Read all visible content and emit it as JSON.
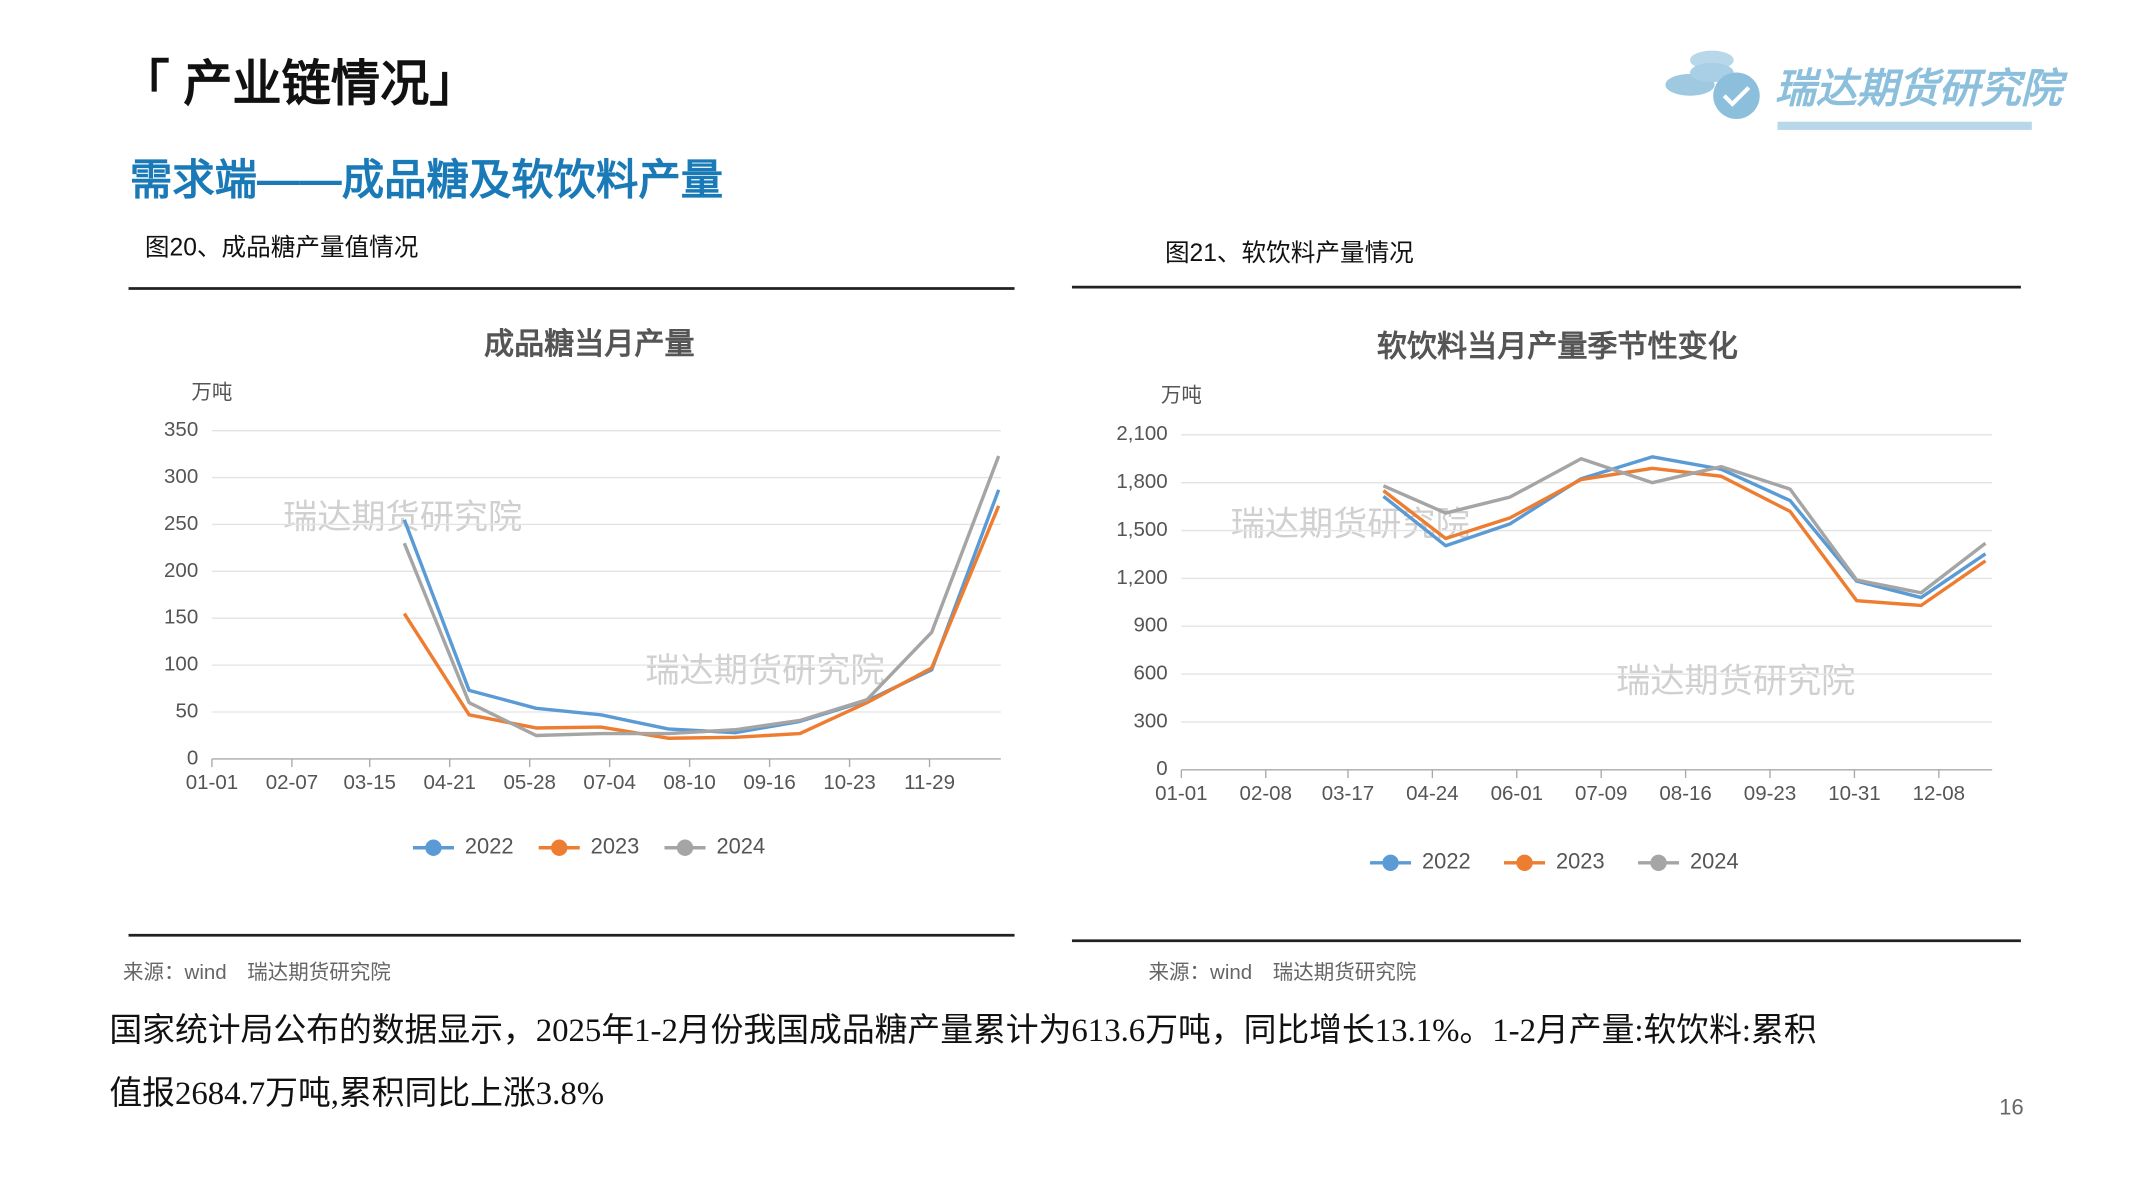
{
  "header": {
    "title": "「 产业链情况」",
    "subtitle": "需求端——成品糖及软饮料产量",
    "logo": "瑞达期货研究院"
  },
  "figures": [
    {
      "caption": "图20、成品糖产量值情况",
      "source": "来源：wind　瑞达期货研究院"
    },
    {
      "caption": "图21、软饮料产量情况",
      "source": "来源：wind　瑞达期货研究院"
    }
  ],
  "chart_data": [
    {
      "type": "line",
      "title": "成品糖当月产量",
      "y_unit": "万吨",
      "annotations": [
        "瑞达期货研究院",
        "瑞达期货研究院"
      ],
      "x": [
        89,
        119,
        150,
        180,
        211,
        242,
        272,
        303,
        333,
        364
      ],
      "xlim": [
        0,
        365
      ],
      "xticks": [
        {
          "value": 0,
          "label": "01-01"
        },
        {
          "value": 37,
          "label": "02-07"
        },
        {
          "value": 73,
          "label": "03-15"
        },
        {
          "value": 110,
          "label": "04-21"
        },
        {
          "value": 147,
          "label": "05-28"
        },
        {
          "value": 184,
          "label": "07-04"
        },
        {
          "value": 221,
          "label": "08-10"
        },
        {
          "value": 258,
          "label": "09-16"
        },
        {
          "value": 295,
          "label": "10-23"
        },
        {
          "value": 332,
          "label": "11-29"
        }
      ],
      "ylim": [
        0,
        350
      ],
      "yticks": [
        0,
        50,
        100,
        150,
        200,
        250,
        300,
        350
      ],
      "grid": true,
      "series": [
        {
          "name": "2022",
          "color": "#5b9bd5",
          "values": [
            255,
            73,
            54,
            47,
            32,
            28,
            40,
            62,
            95,
            287
          ]
        },
        {
          "name": "2023",
          "color": "#ed7d31",
          "values": [
            155,
            47,
            33,
            34,
            22,
            23,
            27,
            60,
            97,
            270
          ]
        },
        {
          "name": "2024",
          "color": "#a5a5a5",
          "values": [
            230,
            60,
            25,
            27,
            27,
            31,
            41,
            63,
            135,
            323
          ]
        }
      ]
    },
    {
      "type": "line",
      "title": "软饮料当月产量季节性变化",
      "y_unit": "万吨",
      "annotations": [
        "瑞达期货研究院",
        "瑞达期货研究院"
      ],
      "x": [
        91,
        119,
        148,
        180,
        212,
        243,
        274,
        304,
        333,
        362
      ],
      "xlim": [
        0,
        365
      ],
      "xticks": [
        {
          "value": 0,
          "label": "01-01"
        },
        {
          "value": 38,
          "label": "02-08"
        },
        {
          "value": 75,
          "label": "03-17"
        },
        {
          "value": 113,
          "label": "04-24"
        },
        {
          "value": 151,
          "label": "06-01"
        },
        {
          "value": 189,
          "label": "07-09"
        },
        {
          "value": 227,
          "label": "08-16"
        },
        {
          "value": 265,
          "label": "09-23"
        },
        {
          "value": 303,
          "label": "10-31"
        },
        {
          "value": 341,
          "label": "12-08"
        }
      ],
      "ylim": [
        0,
        2100
      ],
      "yticks": [
        0,
        300,
        600,
        900,
        {
          "value": 1200,
          "label": "1,200"
        },
        {
          "value": 1500,
          "label": "1,500"
        },
        {
          "value": 1800,
          "label": "1,800"
        },
        {
          "value": 2100,
          "label": "2,100"
        }
      ],
      "grid": true,
      "series": [
        {
          "name": "2022",
          "color": "#5b9bd5",
          "values": [
            1714,
            1405,
            1542,
            1825,
            1962,
            1885,
            1688,
            1183,
            1080,
            1354
          ]
        },
        {
          "name": "2023",
          "color": "#ed7d31",
          "values": [
            1750,
            1450,
            1580,
            1820,
            1890,
            1840,
            1620,
            1060,
            1030,
            1310
          ]
        },
        {
          "name": "2024",
          "color": "#a5a5a5",
          "values": [
            1780,
            1610,
            1710,
            1950,
            1800,
            1900,
            1760,
            1190,
            1110,
            1420
          ]
        }
      ]
    }
  ],
  "body": [
    "国家统计局公布的数据显示，2025年1-2月份我国成品糖产量累计为613.6万吨，同比增长13.1%。1-2月产量:软饮料:累积",
    "值报2684.7万吨,累积同比上涨3.8%"
  ],
  "page_number": "16"
}
